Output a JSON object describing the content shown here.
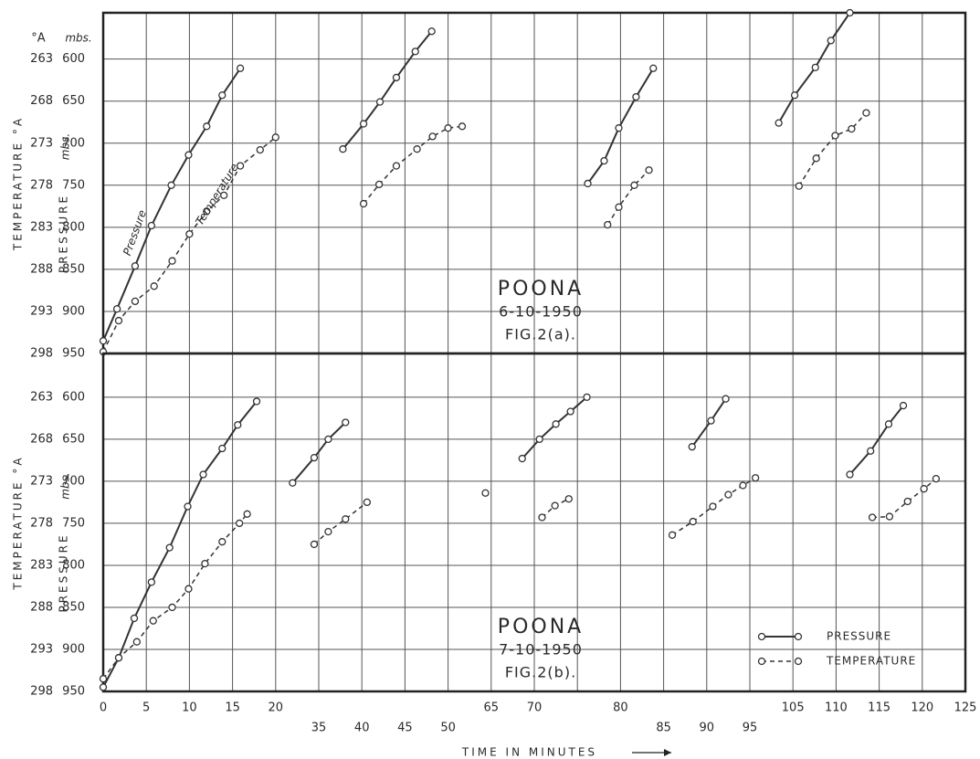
{
  "chart_data": [
    {
      "type": "line",
      "title": "POONA",
      "subtitle": "6-10-1950",
      "figure": "FIG.2(a).",
      "ylabel": "PRESSURE",
      "y_unit": "mbs.",
      "y2label": "TEMPERATURE °A",
      "y_unit_header": "mbs.",
      "y2_unit_header": "°A",
      "xticks": [
        0,
        5,
        10,
        15,
        20,
        35,
        40,
        45,
        50,
        65,
        70,
        null,
        80,
        85,
        90,
        95,
        105,
        110,
        115,
        120,
        125
      ],
      "show_xtick_labels": false,
      "ylim": [
        950,
        545
      ],
      "yticks": [
        600,
        650,
        700,
        750,
        800,
        850,
        900,
        950
      ],
      "y2lim": [
        298,
        257.5
      ],
      "y2ticks": [
        263,
        268,
        273,
        278,
        283,
        288,
        293,
        298
      ],
      "grid": true,
      "legend": false,
      "series": [
        {
          "name": "Pressure",
          "color": "#333333",
          "dash": false,
          "axis": "y",
          "x": [
            0,
            1.6,
            3.7,
            5.6,
            7.9,
            9.9,
            12,
            13.8,
            15.9,
            null,
            37.8,
            40.2,
            42.1,
            44.0,
            46.2,
            48.1,
            null,
            76.2,
            78.1,
            79.8,
            81.8,
            83.8,
            null,
            101.7,
            105.2,
            107.6,
            109.4,
            111.6
          ],
          "values": [
            935,
            897,
            846,
            798,
            750,
            714,
            680,
            643,
            611,
            null,
            707,
            677,
            651,
            622,
            591,
            567,
            null,
            748,
            721,
            682,
            645,
            611,
            null,
            676,
            643,
            610,
            578,
            545
          ]
        },
        {
          "name": "Temperature",
          "color": "#333333",
          "dash": true,
          "axis": "y2",
          "x": [
            0,
            1.8,
            3.7,
            5.9,
            8.0,
            10.0,
            12.0,
            14.0,
            15.9,
            18.2,
            20,
            null,
            40.2,
            42.0,
            44.0,
            46.4,
            48.2,
            50,
            54.9,
            null,
            78.5,
            79.8,
            81.6,
            83.3,
            null,
            105.7,
            107.7,
            109.9,
            111.8,
            113.5
          ],
          "values": [
            297.8,
            294.1,
            291.8,
            290.0,
            287.0,
            283.8,
            281.1,
            279.2,
            275.7,
            273.8,
            272.3,
            null,
            280.2,
            277.9,
            275.7,
            273.7,
            272.2,
            271.2,
            271.0,
            null,
            282.7,
            280.6,
            278.0,
            276.2,
            null,
            278.1,
            274.8,
            272.1,
            271.3,
            269.4
          ]
        }
      ]
    },
    {
      "type": "line",
      "title": "POONA",
      "subtitle": "7-10-1950",
      "figure": "FIG.2(b).",
      "ylabel": "PRESSURE",
      "y_unit": "mbs.",
      "y2label": "TEMPERATURE °A",
      "xlabel": "TIME IN MINUTES",
      "xticks": [
        0,
        5,
        10,
        15,
        20,
        35,
        40,
        45,
        50,
        65,
        70,
        null,
        80,
        85,
        90,
        95,
        105,
        110,
        115,
        120,
        125
      ],
      "show_xtick_labels": true,
      "ylim": [
        950,
        548
      ],
      "yticks": [
        600,
        650,
        700,
        750,
        800,
        850,
        900,
        950
      ],
      "y2lim": [
        298,
        257.8
      ],
      "y2ticks": [
        263,
        268,
        273,
        278,
        283,
        288,
        293,
        298
      ],
      "grid": true,
      "legend": "lower right",
      "series": [
        {
          "name": "PRESSURE",
          "color": "#333333",
          "dash": false,
          "axis": "y",
          "x": [
            0,
            1.8,
            3.6,
            5.6,
            7.7,
            9.8,
            11.6,
            13.8,
            15.6,
            17.8,
            null,
            25.9,
            33.4,
            36.1,
            38.1,
            null,
            68.6,
            70.6,
            72.5,
            74.2,
            76.1,
            null,
            88.3,
            90.5,
            92.2,
            null,
            111.6,
            114.0,
            116.1,
            117.8
          ],
          "values": [
            945,
            910,
            863,
            820,
            779,
            730,
            692,
            661,
            633,
            605,
            null,
            702,
            672,
            650,
            630,
            null,
            673,
            650,
            632,
            617,
            600,
            null,
            659,
            628,
            602,
            null,
            692,
            664,
            632,
            610
          ]
        },
        {
          "name": "TEMPERATURE",
          "color": "#333333",
          "dash": true,
          "axis": "y2",
          "x": [
            0,
            1.8,
            3.9,
            5.8,
            8.0,
            9.9,
            11.8,
            13.8,
            15.8,
            16.7,
            null,
            33.4,
            36.1,
            38.1,
            40.6,
            null,
            63.0,
            null,
            70.9,
            72.4,
            74.0,
            null,
            86.0,
            88.4,
            90.7,
            92.5,
            94.2,
            96.3,
            null,
            114.2,
            116.2,
            118.3,
            120.2,
            121.6
          ],
          "values": [
            296.5,
            294.0,
            292.1,
            289.6,
            288.0,
            285.8,
            282.8,
            280.2,
            278.0,
            276.9,
            null,
            280.5,
            279.0,
            277.5,
            275.5,
            null,
            274.4,
            null,
            277.3,
            275.9,
            275.1,
            null,
            279.4,
            277.8,
            276.0,
            274.6,
            273.5,
            272.6,
            null,
            277.3,
            277.2,
            275.4,
            273.9,
            272.7
          ]
        }
      ]
    }
  ]
}
